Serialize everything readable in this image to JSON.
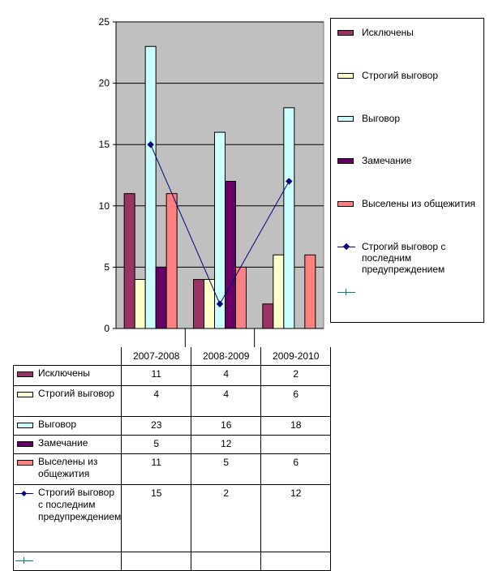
{
  "chart_data": {
    "type": "bar",
    "categories": [
      "2007-2008",
      "2008-2009",
      "2009-2010"
    ],
    "ylim": [
      0,
      25
    ],
    "yticks": [
      0,
      5,
      10,
      15,
      20,
      25
    ],
    "grid": true,
    "legend_position": "right",
    "series": [
      {
        "name": "Исключены",
        "type": "bar",
        "color": "#993366",
        "values": [
          11,
          4,
          2
        ]
      },
      {
        "name": "Строгий выговор",
        "type": "bar",
        "color": "#FFFFCC",
        "values": [
          4,
          4,
          6
        ]
      },
      {
        "name": "Выговор",
        "type": "bar",
        "color": "#CCFFFF",
        "values": [
          23,
          16,
          18
        ]
      },
      {
        "name": "Замечание",
        "type": "bar",
        "color": "#660066",
        "values": [
          5,
          12,
          null
        ]
      },
      {
        "name": "Выселены из общежития",
        "type": "bar",
        "color": "#FF8080",
        "values": [
          11,
          5,
          6
        ]
      },
      {
        "name": "Строгий выговор с последним предупреждением",
        "type": "line",
        "color": "#000080",
        "values": [
          15,
          2,
          12
        ]
      },
      {
        "name": "",
        "type": "line",
        "color": "#008080",
        "values": [
          null,
          null,
          null
        ]
      }
    ],
    "table_labels": [
      "Исключены",
      "Строгий выговор",
      "Выговор",
      "Замечание",
      "Выселены из общежития",
      "Строгий выговор с последним предупреждением",
      ""
    ],
    "table_values": [
      [
        "11",
        "4",
        "2"
      ],
      [
        "4",
        "4",
        "6"
      ],
      [
        "23",
        "16",
        "18"
      ],
      [
        "5",
        "12",
        ""
      ],
      [
        "11",
        "5",
        "6"
      ],
      [
        "15",
        "2",
        "12"
      ],
      [
        "",
        "",
        ""
      ]
    ],
    "plot_background": "#C0C0C0"
  }
}
